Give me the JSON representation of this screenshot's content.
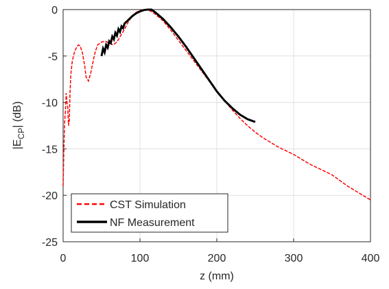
{
  "chart_data": {
    "type": "line",
    "xlabel": "z (mm)",
    "ylabel": [
      "|E",
      "CP",
      "| (dB)"
    ],
    "xlim": [
      0,
      400
    ],
    "xticks": [
      0,
      100,
      200,
      300,
      400
    ],
    "ylim": [
      -25,
      0
    ],
    "yticks": [
      -25,
      -20,
      -15,
      -10,
      -5,
      0
    ],
    "grid": true,
    "legend": "lower-left",
    "series": [
      {
        "name": "CST Simulation",
        "color": "#ff0000",
        "dash": true,
        "x": [
          0,
          1,
          2,
          3,
          4,
          5,
          6,
          7,
          8,
          9,
          10,
          12,
          15,
          18,
          20,
          22,
          25,
          28,
          30,
          33,
          36,
          38,
          40,
          42,
          45,
          50,
          55,
          60,
          65,
          70,
          75,
          80,
          85,
          90,
          95,
          100,
          105,
          110,
          115,
          120,
          130,
          140,
          150,
          160,
          170,
          180,
          190,
          200,
          210,
          220,
          230,
          240,
          250,
          260,
          270,
          280,
          290,
          300,
          310,
          320,
          330,
          340,
          350,
          360,
          370,
          380,
          390,
          400
        ],
        "values": [
          -19,
          -15,
          -12,
          -11,
          -9,
          -10,
          -10.5,
          -12.5,
          -12,
          -9,
          -7,
          -5.5,
          -4.5,
          -4,
          -3.8,
          -3.9,
          -4.6,
          -6,
          -7.3,
          -7.7,
          -6.8,
          -6,
          -5.2,
          -4.5,
          -3.8,
          -3.5,
          -3.4,
          -3.6,
          -3.8,
          -3.5,
          -2.8,
          -2.1,
          -1.3,
          -0.7,
          -0.3,
          -0.1,
          0,
          -0.05,
          -0.2,
          -0.5,
          -1.2,
          -2.2,
          -3.3,
          -4.4,
          -5.5,
          -6.6,
          -7.7,
          -8.8,
          -9.8,
          -10.8,
          -11.7,
          -12.5,
          -13.2,
          -13.8,
          -14.3,
          -14.8,
          -15.2,
          -15.6,
          -16.1,
          -16.6,
          -17.0,
          -17.4,
          -17.8,
          -18.4,
          -19.0,
          -19.5,
          -20.0,
          -20.5
        ]
      },
      {
        "name": "NF Measurement",
        "color": "#000000",
        "dash": false,
        "x": [
          50,
          52,
          54,
          56,
          58,
          60,
          62,
          64,
          66,
          68,
          70,
          72,
          74,
          76,
          78,
          80,
          85,
          90,
          95,
          100,
          105,
          110,
          115,
          120,
          130,
          140,
          150,
          160,
          170,
          180,
          190,
          200,
          210,
          220,
          230,
          240,
          250
        ],
        "values": [
          -5,
          -4.2,
          -4.6,
          -3.8,
          -4.1,
          -3.4,
          -3.6,
          -2.9,
          -3.2,
          -2.5,
          -2.8,
          -2.1,
          -2.4,
          -1.8,
          -2.0,
          -1.5,
          -1.1,
          -0.7,
          -0.4,
          -0.2,
          -0.05,
          0,
          0,
          -0.3,
          -1,
          -1.9,
          -2.9,
          -4,
          -5.2,
          -6.4,
          -7.6,
          -8.8,
          -9.8,
          -10.6,
          -11.3,
          -11.8,
          -12.1
        ]
      }
    ]
  }
}
